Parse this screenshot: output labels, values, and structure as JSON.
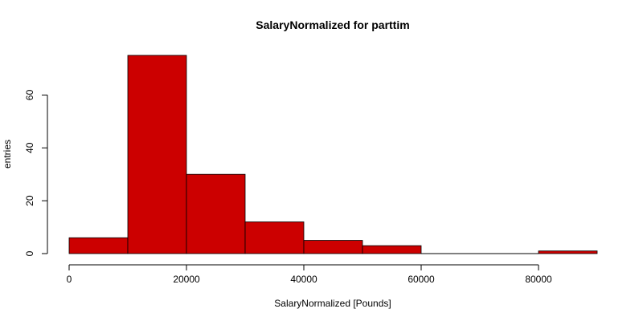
{
  "chart_data": {
    "type": "bar",
    "title": "SalaryNormalized for parttim",
    "xlabel": "SalaryNormalized [Pounds]",
    "ylabel": "entries",
    "bins": [
      {
        "from": 0,
        "to": 10000,
        "count": 6
      },
      {
        "from": 10000,
        "to": 20000,
        "count": 75
      },
      {
        "from": 20000,
        "to": 30000,
        "count": 30
      },
      {
        "from": 30000,
        "to": 40000,
        "count": 12
      },
      {
        "from": 40000,
        "to": 50000,
        "count": 5
      },
      {
        "from": 50000,
        "to": 60000,
        "count": 3
      },
      {
        "from": 60000,
        "to": 70000,
        "count": 0
      },
      {
        "from": 70000,
        "to": 80000,
        "count": 0
      },
      {
        "from": 80000,
        "to": 90000,
        "count": 1
      }
    ],
    "x_ticks": [
      0,
      20000,
      40000,
      60000,
      80000
    ],
    "x_tick_labels": [
      "0",
      "20000",
      "40000",
      "60000",
      "80000"
    ],
    "y_ticks": [
      0,
      20,
      40,
      60
    ],
    "y_tick_labels": [
      "0",
      "20",
      "40",
      "60"
    ],
    "xlim": [
      0,
      90000
    ],
    "ylim": [
      0,
      75
    ],
    "bar_color": "#cc0000",
    "grid": false
  }
}
